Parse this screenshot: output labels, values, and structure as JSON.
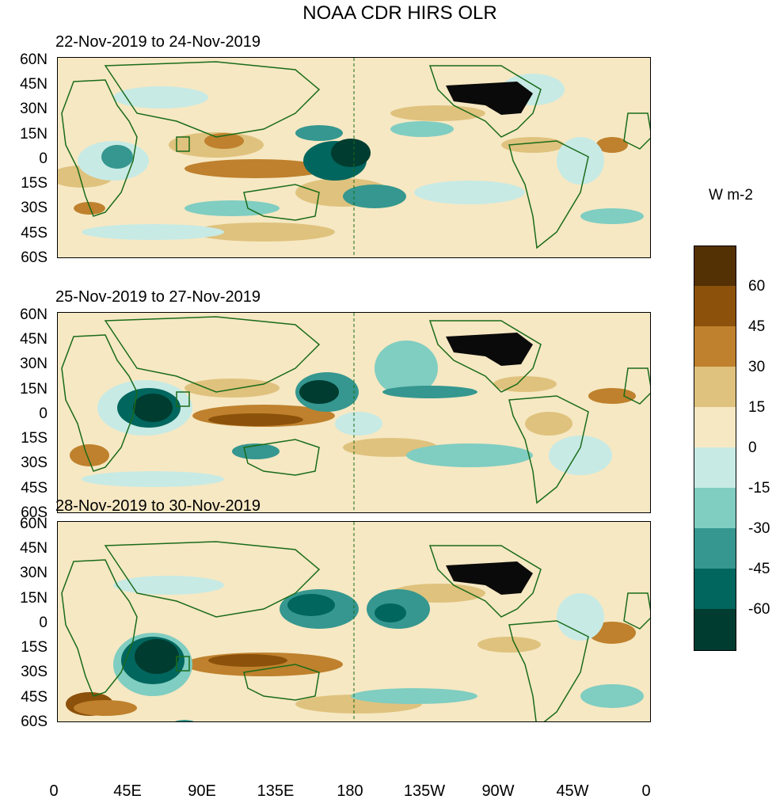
{
  "title": "NOAA CDR HIRS OLR",
  "panels": [
    {
      "label": "22-Nov-2019 to 24-Nov-2019"
    },
    {
      "label": "25-Nov-2019 to 27-Nov-2019"
    },
    {
      "label": "28-Nov-2019 to 30-Nov-2019"
    }
  ],
  "lat_labels": [
    "60N",
    "45N",
    "30N",
    "15N",
    "0",
    "15S",
    "30S",
    "45S",
    "60S"
  ],
  "lon_labels": [
    "0",
    "45E",
    "90E",
    "135E",
    "180",
    "135W",
    "90W",
    "45W",
    "0"
  ],
  "colorbar": {
    "units": "W m-2",
    "tick_labels": [
      "60",
      "45",
      "30",
      "15",
      "0",
      "-15",
      "-30",
      "-45",
      "-60"
    ],
    "colors": [
      "#543005",
      "#8c510a",
      "#bf812d",
      "#dfc27d",
      "#f6e8c3",
      "#c7eae5",
      "#80cdc1",
      "#35978f",
      "#01665e",
      "#003c30"
    ]
  },
  "colors": {
    "coastline": "#1a6b1a",
    "neutral": "#f3e6c6",
    "dark_us": "#0a0a0a"
  }
}
